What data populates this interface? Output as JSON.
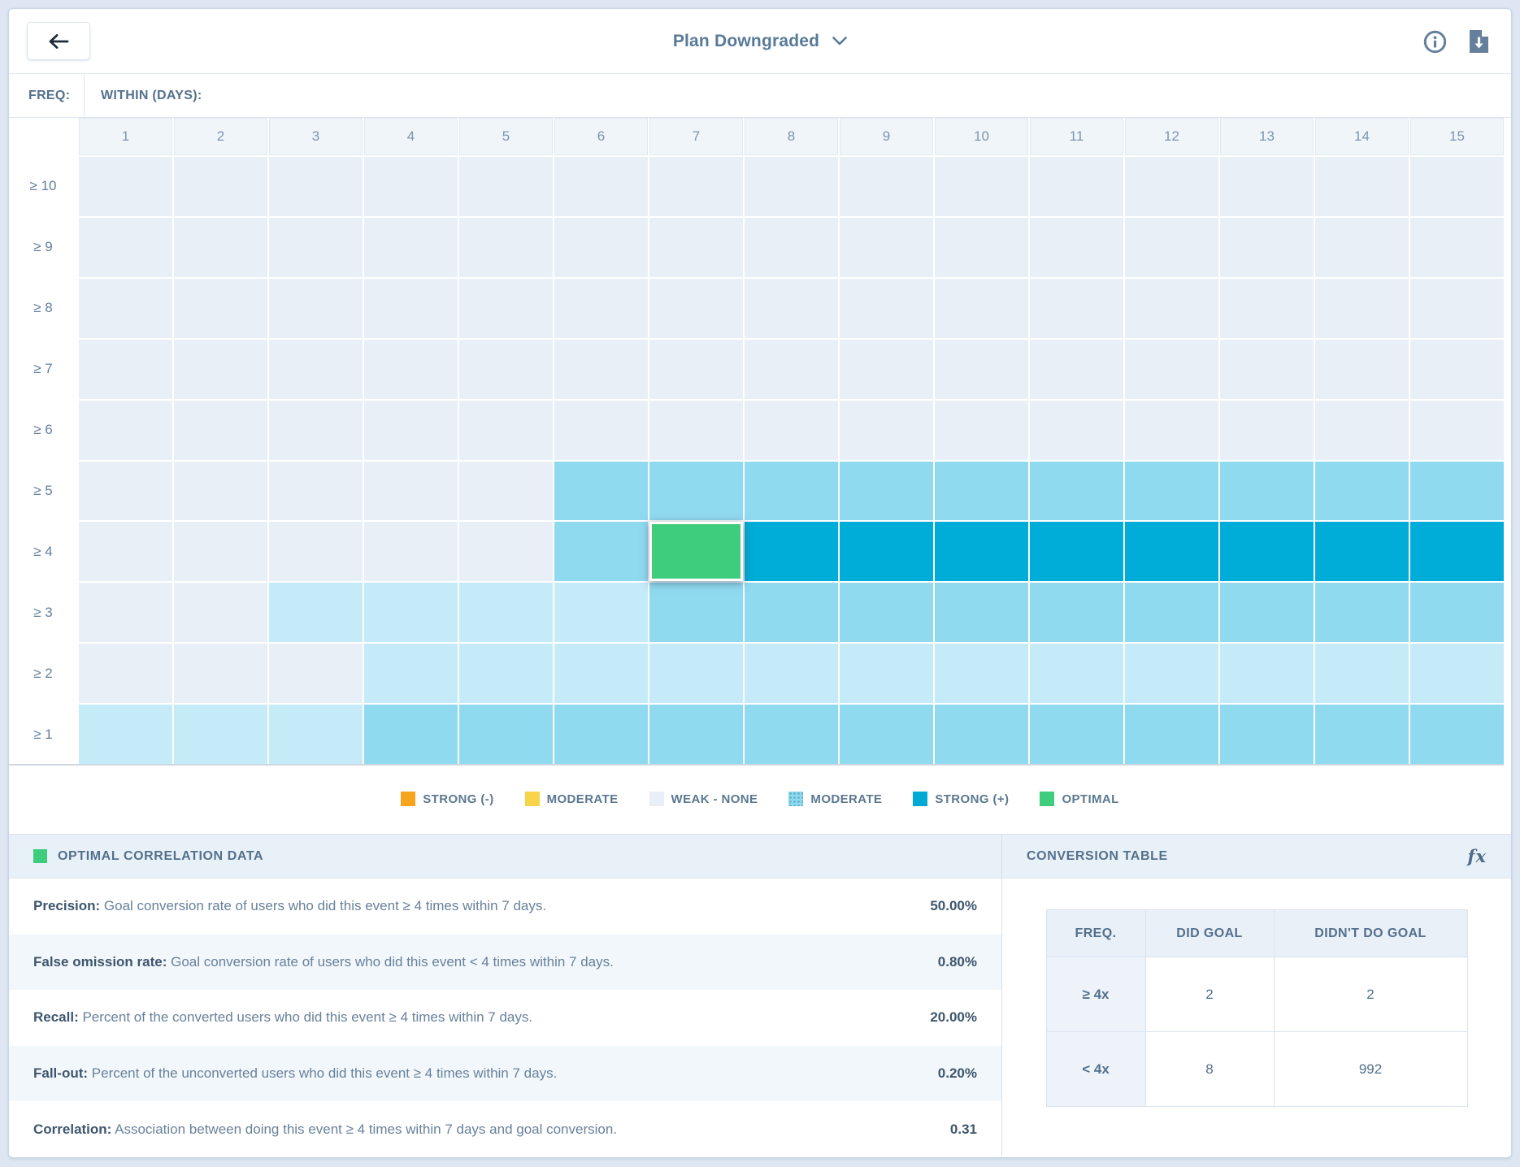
{
  "topbar": {
    "title": "Plan Downgraded"
  },
  "heatmap": {
    "freq_axis_label": "FREQ:",
    "within_axis_label": "WITHIN (DAYS):",
    "columns": [
      "1",
      "2",
      "3",
      "4",
      "5",
      "6",
      "7",
      "8",
      "9",
      "10",
      "11",
      "12",
      "13",
      "14",
      "15"
    ],
    "levels": {
      "w": {
        "name": "weak-none",
        "color": "#e9eff7"
      },
      "l": {
        "name": "moderate-light",
        "color": "#c5eaf8"
      },
      "m": {
        "name": "moderate",
        "color": "#90daf0"
      },
      "s": {
        "name": "strong-positive",
        "color": "#00acd8"
      },
      "g": {
        "name": "optimal",
        "color": "#3ecd7c"
      }
    },
    "selected_cell": {
      "row": "≥ 4",
      "column": "7",
      "level": "optimal"
    },
    "rows": [
      {
        "label": "≥ 10",
        "cells": [
          "w",
          "w",
          "w",
          "w",
          "w",
          "w",
          "w",
          "w",
          "w",
          "w",
          "w",
          "w",
          "w",
          "w",
          "w"
        ]
      },
      {
        "label": "≥ 9",
        "cells": [
          "w",
          "w",
          "w",
          "w",
          "w",
          "w",
          "w",
          "w",
          "w",
          "w",
          "w",
          "w",
          "w",
          "w",
          "w"
        ]
      },
      {
        "label": "≥ 8",
        "cells": [
          "w",
          "w",
          "w",
          "w",
          "w",
          "w",
          "w",
          "w",
          "w",
          "w",
          "w",
          "w",
          "w",
          "w",
          "w"
        ]
      },
      {
        "label": "≥ 7",
        "cells": [
          "w",
          "w",
          "w",
          "w",
          "w",
          "w",
          "w",
          "w",
          "w",
          "w",
          "w",
          "w",
          "w",
          "w",
          "w"
        ]
      },
      {
        "label": "≥ 6",
        "cells": [
          "w",
          "w",
          "w",
          "w",
          "w",
          "w",
          "w",
          "w",
          "w",
          "w",
          "w",
          "w",
          "w",
          "w",
          "w"
        ]
      },
      {
        "label": "≥ 5",
        "cells": [
          "w",
          "w",
          "w",
          "w",
          "w",
          "m",
          "m",
          "m",
          "m",
          "m",
          "m",
          "m",
          "m",
          "m",
          "m"
        ]
      },
      {
        "label": "≥ 4",
        "cells": [
          "w",
          "w",
          "w",
          "w",
          "w",
          "m",
          "g",
          "s",
          "s",
          "s",
          "s",
          "s",
          "s",
          "s",
          "s"
        ]
      },
      {
        "label": "≥ 3",
        "cells": [
          "w",
          "w",
          "l",
          "l",
          "l",
          "l",
          "m",
          "m",
          "m",
          "m",
          "m",
          "m",
          "m",
          "m",
          "m"
        ]
      },
      {
        "label": "≥ 2",
        "cells": [
          "w",
          "w",
          "w",
          "l",
          "l",
          "l",
          "l",
          "l",
          "l",
          "l",
          "l",
          "l",
          "l",
          "l",
          "l"
        ]
      },
      {
        "label": "≥ 1",
        "cells": [
          "l",
          "l",
          "l",
          "m",
          "m",
          "m",
          "m",
          "m",
          "m",
          "m",
          "m",
          "m",
          "m",
          "m",
          "m"
        ]
      }
    ]
  },
  "legend": {
    "items": [
      {
        "label": "STRONG (-)",
        "color": "#f6a41e",
        "textured": false
      },
      {
        "label": "MODERATE",
        "color": "#f8d44a",
        "textured": false
      },
      {
        "label": "WEAK - NONE",
        "color": "#e9eff7",
        "textured": false
      },
      {
        "label": "MODERATE",
        "color": "#8fd9ef",
        "textured": true
      },
      {
        "label": "STRONG (+)",
        "color": "#00aad4",
        "textured": false
      },
      {
        "label": "OPTIMAL",
        "color": "#3ecd7c",
        "textured": false
      }
    ]
  },
  "optimal_panel": {
    "title": "OPTIMAL CORRELATION DATA",
    "swatch_color": "#3ecd7c",
    "rows": [
      {
        "label": "Precision:",
        "description": "Goal conversion rate of users who did this event ≥ 4 times within 7 days.",
        "value": "50.00%"
      },
      {
        "label": "False omission rate:",
        "description": "Goal conversion rate of users who did this event < 4 times within 7 days.",
        "value": "0.80%"
      },
      {
        "label": "Recall:",
        "description": "Percent of the converted users who did this event ≥ 4 times within 7 days.",
        "value": "20.00%"
      },
      {
        "label": "Fall-out:",
        "description": "Percent of the unconverted users who did this event ≥ 4 times within 7 days.",
        "value": "0.20%"
      },
      {
        "label": "Correlation:",
        "description": "Association between doing this event ≥ 4 times within 7 days and goal conversion.",
        "value": "0.31"
      }
    ]
  },
  "conversion_panel": {
    "title": "CONVERSION TABLE",
    "fx_icon_label": "fx",
    "headers": [
      "FREQ.",
      "DID GOAL",
      "DIDN'T DO GOAL"
    ],
    "rows": [
      {
        "freq": "≥ 4x",
        "did": "2",
        "didnt": "2"
      },
      {
        "freq": "< 4x",
        "did": "8",
        "didnt": "992"
      }
    ]
  }
}
